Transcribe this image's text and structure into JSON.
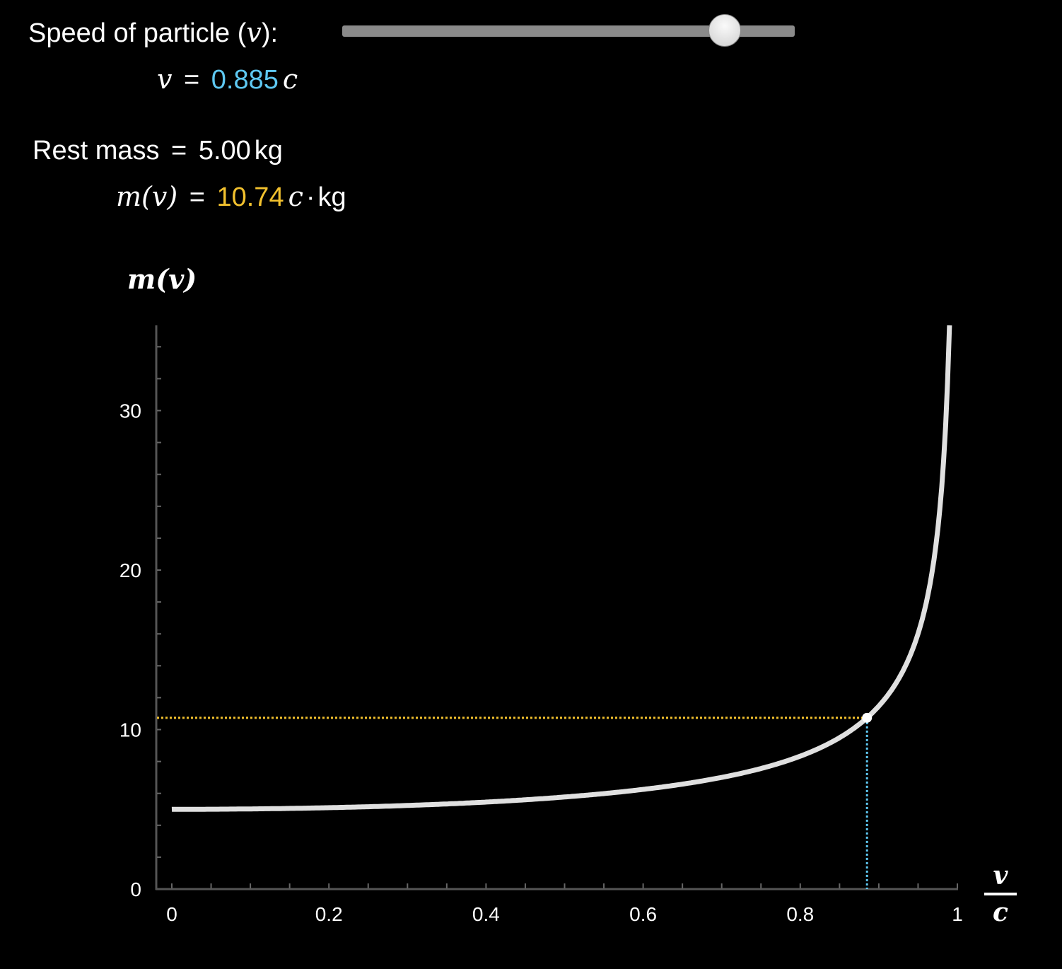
{
  "controls": {
    "speed_label": "Speed of particle (",
    "speed_var": "v",
    "speed_label_end": "):",
    "slider_fraction": 0.885,
    "v_symbol": "v",
    "equals": "=",
    "v_value": "0.885",
    "c_symbol": "c",
    "rest_mass_label": "Rest mass",
    "rest_mass_value": "5.00",
    "kg_unit": "kg",
    "m_label": "m(v)",
    "m_value": "10.74",
    "m_unit_c": "c",
    "m_unit_dot": "·",
    "m_unit_kg": "kg"
  },
  "colors": {
    "speed": "#5ec8f2",
    "mass": "#f2c12e",
    "curve": "#e0e0e0",
    "axis": "#555555"
  },
  "chart_data": {
    "type": "line",
    "function": "m(v) = 5 / sqrt(1 - (v/c)^2)",
    "rest_mass": 5,
    "x_range": [
      0,
      0.99
    ],
    "xlim": [
      0,
      1
    ],
    "ylim": [
      0,
      35.3
    ],
    "xlabel_num": "v",
    "xlabel_den": "c",
    "ylabel": "m(v)",
    "x_ticks": [
      "0",
      "0.2",
      "0.4",
      "0.6",
      "0.8",
      "1"
    ],
    "y_ticks": [
      "0",
      "10",
      "20",
      "30"
    ],
    "marker": {
      "x": 0.885,
      "y": 10.74
    },
    "grid": false
  }
}
